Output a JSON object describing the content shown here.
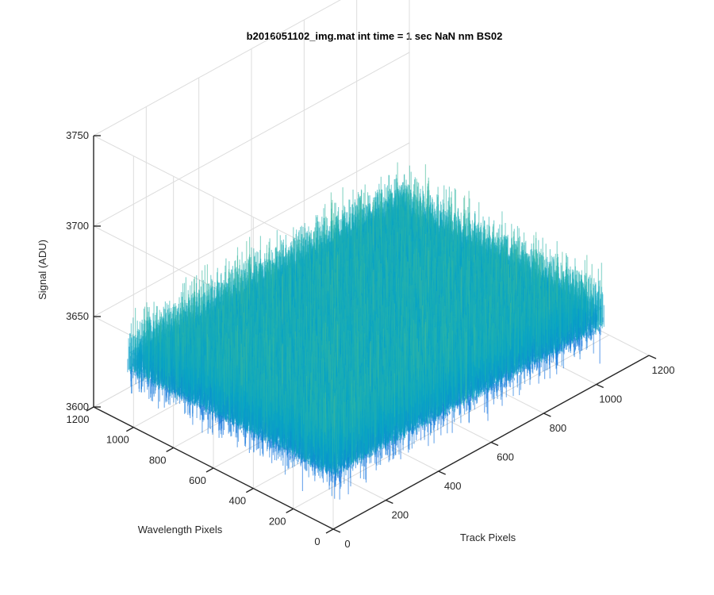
{
  "figure": {
    "title": "b2016051102_img.mat int time = 1 sec  NaN nm BS02"
  },
  "chart_data": {
    "type": "surface",
    "title": "b2016051102_img.mat int time = 1 sec  NaN nm BS02",
    "xlabel": "Track Pixels",
    "ylabel": "Wavelength Pixels",
    "zlabel": "Signal (ADU)",
    "xlim": [
      0,
      1200
    ],
    "ylim": [
      0,
      1200
    ],
    "zlim": [
      3600,
      3750
    ],
    "x_ticks": [
      "0",
      "200",
      "400",
      "600",
      "800",
      "1000",
      "1200"
    ],
    "y_ticks": [
      "0",
      "200",
      "400",
      "600",
      "800",
      "1000",
      "1200"
    ],
    "z_ticks": [
      "3600",
      "3650",
      "3700",
      "3750"
    ],
    "data_extent": {
      "x": [
        1,
        1024
      ],
      "y": [
        1,
        1024
      ]
    },
    "surface_mean": 3640,
    "surface_noise_range": [
      3615,
      3675
    ],
    "colormap": "parula",
    "grid": true
  }
}
